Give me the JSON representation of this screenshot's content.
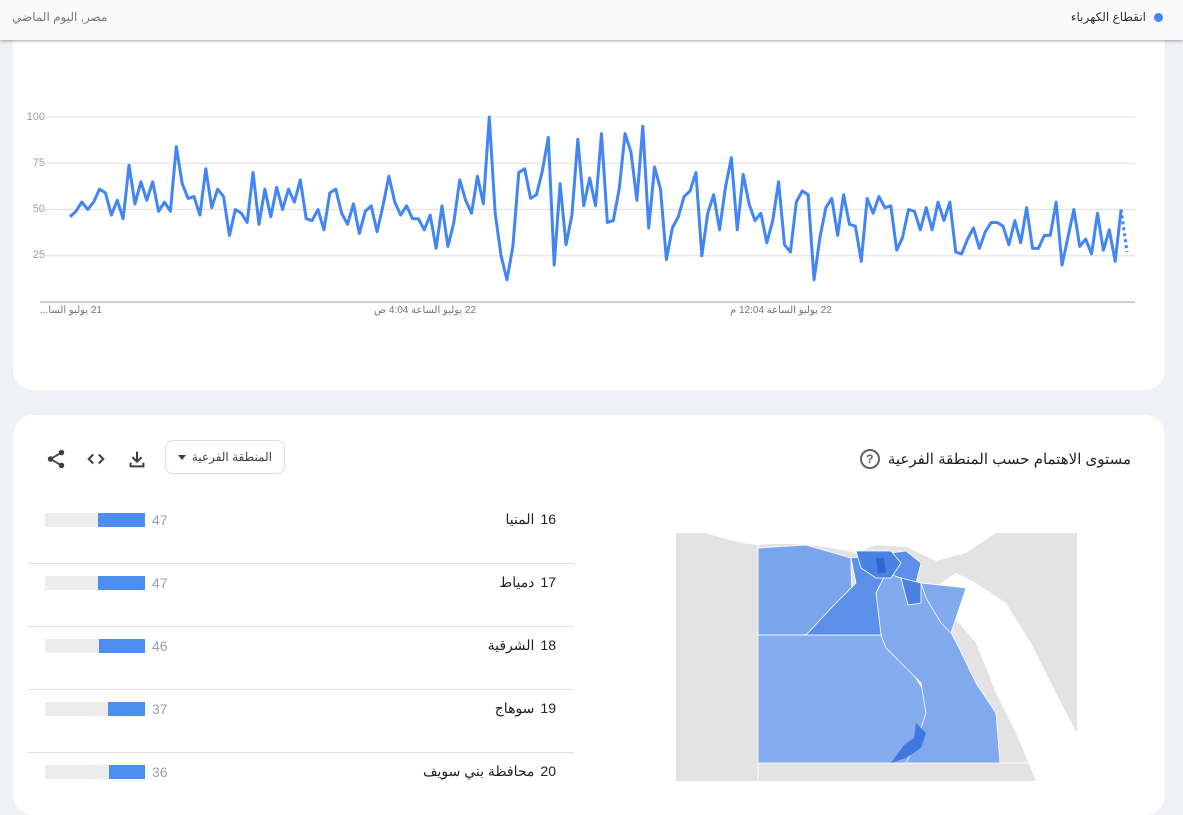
{
  "header": {
    "legend_term": "انقطاع الكهرباء",
    "subtitle": "مصر, اليوم الماضي",
    "series_color": "#4285f4"
  },
  "chart_data": {
    "type": "line",
    "title": "",
    "xlabel": "",
    "ylabel": "",
    "ylim": [
      0,
      100
    ],
    "yticks": [
      "25",
      "50",
      "75",
      "100"
    ],
    "xticks": [
      "21 يوليو السا...",
      "22 يوليو الساعة 4:04 ص",
      "22 يوليو الساعة 12:04 م"
    ],
    "grid": true,
    "last_segment_partial": true,
    "color": "#4285f4",
    "values": [
      46,
      49,
      54,
      50,
      54,
      61,
      59,
      47,
      55,
      45,
      74,
      53,
      65,
      55,
      65,
      49,
      54,
      49,
      84,
      64,
      56,
      57,
      47,
      72,
      51,
      61,
      57,
      36,
      50,
      48,
      43,
      70,
      42,
      61,
      46,
      62,
      50,
      61,
      54,
      66,
      45,
      44,
      50,
      39,
      59,
      61,
      48,
      42,
      53,
      37,
      49,
      52,
      38,
      52,
      68,
      54,
      47,
      52,
      45,
      45,
      39,
      47,
      29,
      52,
      30,
      43,
      66,
      55,
      48,
      68,
      53,
      100,
      48,
      25,
      12,
      30,
      70,
      72,
      56,
      58,
      71,
      89,
      20,
      64,
      31,
      47,
      88,
      52,
      67,
      52,
      91,
      43,
      44,
      61,
      91,
      81,
      55,
      95,
      40,
      73,
      61,
      23,
      40,
      46,
      57,
      60,
      70,
      25,
      48,
      58,
      39,
      62,
      78,
      39,
      69,
      53,
      44,
      48,
      32,
      44,
      65,
      31,
      27,
      54,
      60,
      58,
      12,
      35,
      51,
      56,
      36,
      58,
      42,
      41,
      22,
      56,
      48,
      57,
      51,
      52,
      28,
      35,
      50,
      49,
      39,
      51,
      39,
      54,
      44,
      54,
      27,
      26,
      34,
      40,
      29,
      38,
      43,
      43,
      41,
      31,
      44,
      32,
      51,
      29,
      29,
      36,
      36,
      54,
      20,
      35,
      50,
      30,
      34,
      26,
      48,
      28,
      39,
      22,
      50,
      27
    ]
  },
  "regions": {
    "title": "مستوى الاهتمام حسب المنطقة الفرعية",
    "help_icon": "help-circle-icon",
    "dropdown_value": "المنطقة الفرعية",
    "tools": [
      "download-icon",
      "embed-code-icon",
      "share-icon"
    ],
    "rows": [
      {
        "rank": "16",
        "name": "المنيا",
        "value": 47
      },
      {
        "rank": "17",
        "name": "دمياط",
        "value": 47
      },
      {
        "rank": "18",
        "name": "الشرقية",
        "value": 46
      },
      {
        "rank": "19",
        "name": "سوهاج",
        "value": 37
      },
      {
        "rank": "20",
        "name": "محافظة بني سويف",
        "value": 36
      }
    ],
    "map_colors": {
      "light": "#80a9ef",
      "mid": "#5b8fe8",
      "dark": "#3f79e0",
      "land": "#e3e3e3"
    }
  }
}
